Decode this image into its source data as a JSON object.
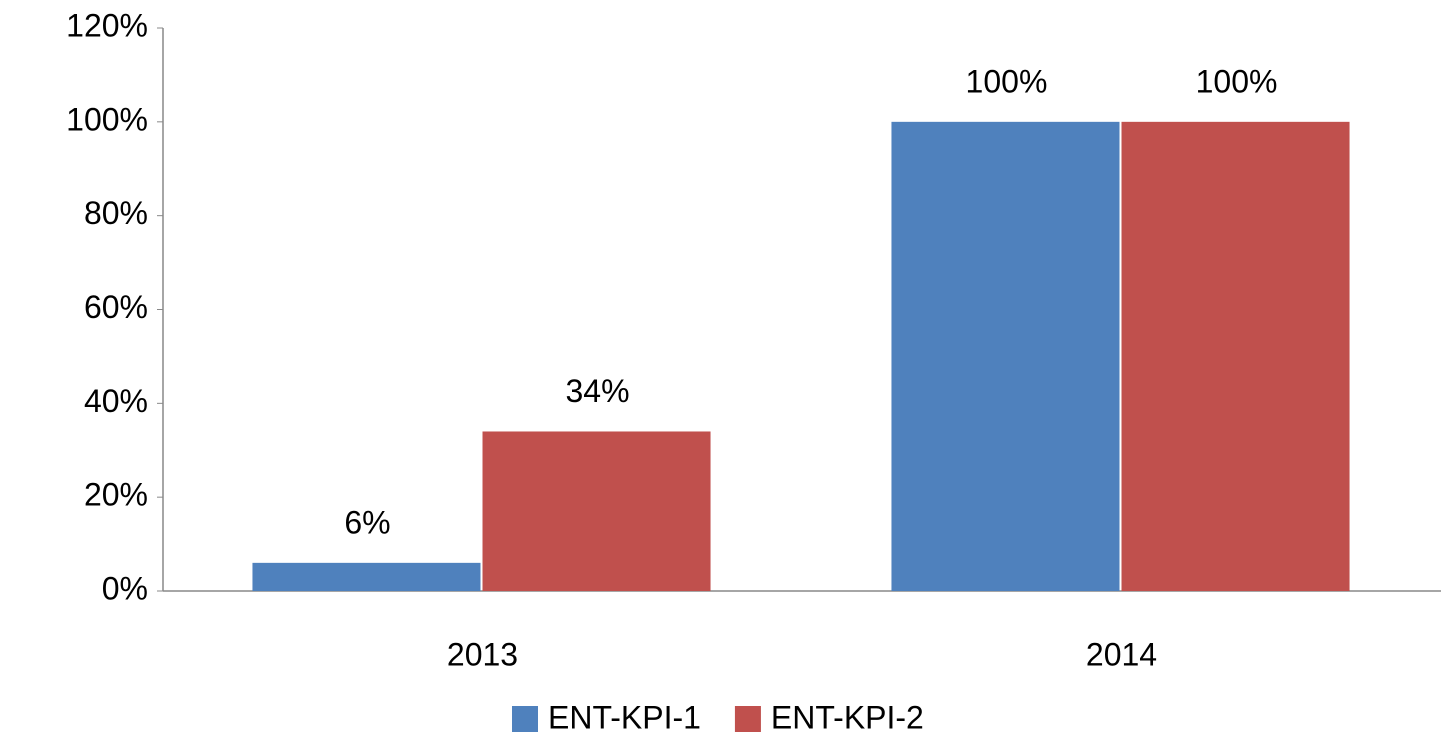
{
  "chart_data": {
    "type": "bar",
    "categories": [
      "2013",
      "2014"
    ],
    "series": [
      {
        "name": "ENT-KPI-1",
        "color": "#4f81bd",
        "values": [
          6,
          100
        ],
        "value_labels": [
          "6%",
          "100%"
        ]
      },
      {
        "name": "ENT-KPI-2",
        "color": "#c0504d",
        "values": [
          34,
          100
        ],
        "value_labels": [
          "34%",
          "100%"
        ]
      }
    ],
    "ylim": [
      0,
      120
    ],
    "yticks": [
      {
        "value": 0,
        "label": "0%"
      },
      {
        "value": 20,
        "label": "20%"
      },
      {
        "value": 40,
        "label": "40%"
      },
      {
        "value": 60,
        "label": "60%"
      },
      {
        "value": 80,
        "label": "80%"
      },
      {
        "value": 100,
        "label": "100%"
      },
      {
        "value": 120,
        "label": "120%"
      }
    ],
    "grid": false,
    "legend": "bottom"
  }
}
